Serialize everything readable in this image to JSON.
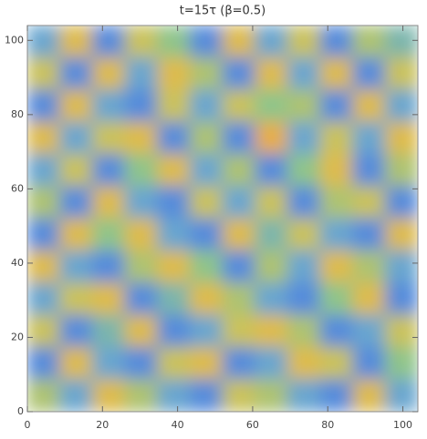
{
  "chart_data": {
    "type": "heatmap",
    "title": "t=15τ (β=0.5)",
    "xlim": [
      0,
      104
    ],
    "ylim": [
      0,
      104
    ],
    "xticks": [
      0,
      20,
      40,
      60,
      80,
      100
    ],
    "yticks": [
      0,
      20,
      40,
      60,
      80,
      100
    ],
    "colormap": [
      "#2b3fc9",
      "#5f9ee0",
      "#8fc48a",
      "#d9c14f",
      "#f2a23c"
    ],
    "zlim": [
      0,
      1
    ],
    "z": [
      [
        0.3,
        0.8,
        0.2,
        0.7,
        0.5,
        0.2,
        0.8,
        0.3,
        0.7,
        0.2,
        0.6,
        0.4
      ],
      [
        0.7,
        0.2,
        0.8,
        0.3,
        0.8,
        0.6,
        0.2,
        0.8,
        0.3,
        0.8,
        0.2,
        0.7
      ],
      [
        0.2,
        0.8,
        0.3,
        0.2,
        0.7,
        0.3,
        0.7,
        0.5,
        0.6,
        0.2,
        0.8,
        0.3
      ],
      [
        0.8,
        0.3,
        0.7,
        0.8,
        0.2,
        0.6,
        0.2,
        0.9,
        0.3,
        0.7,
        0.3,
        0.8
      ],
      [
        0.3,
        0.7,
        0.2,
        0.5,
        0.8,
        0.3,
        0.6,
        0.2,
        0.5,
        0.8,
        0.2,
        0.6
      ],
      [
        0.6,
        0.2,
        0.8,
        0.3,
        0.2,
        0.7,
        0.3,
        0.7,
        0.2,
        0.6,
        0.7,
        0.2
      ],
      [
        0.2,
        0.8,
        0.5,
        0.8,
        0.3,
        0.2,
        0.8,
        0.4,
        0.7,
        0.3,
        0.2,
        0.8
      ],
      [
        0.8,
        0.3,
        0.2,
        0.6,
        0.8,
        0.5,
        0.2,
        0.6,
        0.3,
        0.8,
        0.6,
        0.3
      ],
      [
        0.3,
        0.7,
        0.8,
        0.2,
        0.4,
        0.8,
        0.6,
        0.3,
        0.2,
        0.5,
        0.8,
        0.2
      ],
      [
        0.7,
        0.2,
        0.4,
        0.8,
        0.2,
        0.3,
        0.7,
        0.8,
        0.6,
        0.2,
        0.3,
        0.7
      ],
      [
        0.2,
        0.8,
        0.3,
        0.2,
        0.7,
        0.8,
        0.2,
        0.3,
        0.8,
        0.7,
        0.2,
        0.5
      ],
      [
        0.6,
        0.3,
        0.8,
        0.6,
        0.3,
        0.2,
        0.7,
        0.6,
        0.3,
        0.2,
        0.8,
        0.3
      ]
    ]
  }
}
